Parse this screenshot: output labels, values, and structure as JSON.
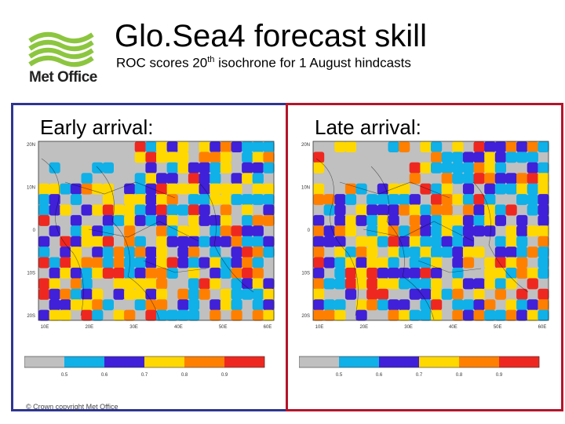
{
  "header": {
    "logo_text": "Met Office",
    "title": "Glo.Sea4 forecast skill",
    "subtitle_pre": "ROC scores 20",
    "subtitle_sup": "th",
    "subtitle_post": " isochrone for 1 August hindcasts"
  },
  "colors": {
    "early_border": "#2e3590",
    "late_border": "#b5142b",
    "logo_green": "#8cc63f"
  },
  "maps": [
    {
      "id": "early",
      "title": "Early arrival:",
      "lat_labels": [
        "20N",
        "10N",
        "0",
        "10S",
        "20S"
      ],
      "lon_labels": [
        "10E",
        "20E",
        "30E",
        "40E",
        "50E",
        "60E"
      ]
    },
    {
      "id": "late",
      "title": "Late arrival:",
      "lat_labels": [
        "20N",
        "10N",
        "0",
        "10S",
        "20S"
      ],
      "lon_labels": [
        "10E",
        "20E",
        "30E",
        "40E",
        "50E",
        "60E"
      ]
    }
  ],
  "legend": {
    "colors": [
      "#c0c0c0",
      "#10b0e8",
      "#4020d8",
      "#ffd800",
      "#ff8000",
      "#ee2820"
    ],
    "labels": [
      "0.5",
      "0.6",
      "0.7",
      "0.8",
      "0.9"
    ]
  },
  "footer": {
    "copyright": "© Crown copyright Met Office"
  }
}
